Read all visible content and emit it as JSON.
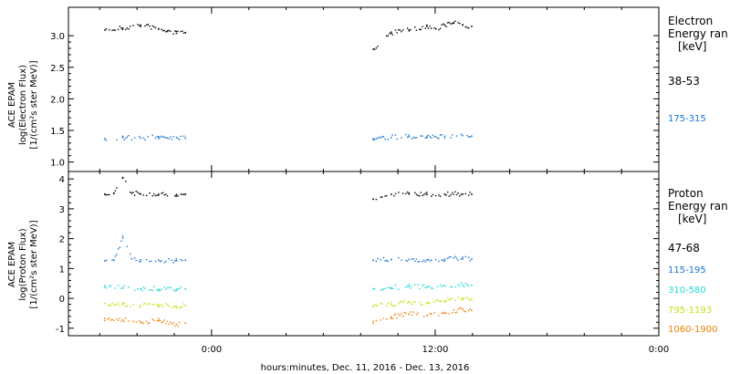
{
  "chart_data": [
    {
      "type": "scatter",
      "panel": "electron",
      "ylabel_lines": [
        "ACE EPAM",
        "log(Electron Flux)",
        "[1/(cm²s ster MeV)]"
      ],
      "ylim": [
        0.85,
        3.45
      ],
      "yticks": [
        "1.0",
        "1.5",
        "2.0",
        "2.5",
        "3.0"
      ],
      "legend_title": [
        "Electron",
        "Energy ran",
        "[keV]"
      ],
      "series": [
        {
          "name": "38-53",
          "color": "#000000",
          "segments": [
            {
              "x": [
                -0.06,
                -0.05,
                -0.04,
                -0.03,
                -0.025,
                -0.02,
                -0.015
              ],
              "values": [
                3.1,
                3.13,
                3.18,
                3.12,
                3.08,
                3.05,
                3.06
              ]
            },
            {
              "x": [
                0.09,
                0.1,
                0.11,
                0.12,
                0.125,
                0.13,
                0.135,
                0.14,
                0.145
              ],
              "values": [
                2.8,
                3.05,
                3.1,
                3.16,
                3.12,
                3.18,
                3.21,
                3.18,
                3.16
              ]
            }
          ]
        },
        {
          "name": "175-315",
          "color": "#1874cd",
          "segments": [
            {
              "x": [
                -0.06,
                -0.05,
                -0.04,
                -0.03,
                -0.02,
                -0.015
              ],
              "values": [
                1.38,
                1.4,
                1.39,
                1.41,
                1.4,
                1.39
              ]
            },
            {
              "x": [
                0.09,
                0.1,
                0.11,
                0.12,
                0.13,
                0.14,
                0.145
              ],
              "values": [
                1.38,
                1.4,
                1.41,
                1.4,
                1.42,
                1.43,
                1.42
              ]
            }
          ]
        }
      ]
    },
    {
      "type": "scatter",
      "panel": "proton",
      "ylabel_lines": [
        "ACE EPAM",
        "log(Proton Flux)",
        "[1/(cm²s ster MeV)]"
      ],
      "ylim": [
        -1.25,
        4.25
      ],
      "yticks": [
        "-1",
        "0",
        "1",
        "2",
        "3",
        "4"
      ],
      "legend_title": [
        "Proton",
        "Energy ran",
        "[keV]"
      ],
      "series": [
        {
          "name": "47-68",
          "color": "#000000",
          "segments": [
            {
              "x": [
                -0.06,
                -0.055,
                -0.05,
                -0.045,
                -0.04,
                -0.03,
                -0.02,
                -0.015
              ],
              "values": [
                3.52,
                3.55,
                4.05,
                3.55,
                3.52,
                3.51,
                3.5,
                3.51
              ]
            },
            {
              "x": [
                0.09,
                0.1,
                0.11,
                0.12,
                0.13,
                0.14,
                0.145
              ],
              "values": [
                3.35,
                3.51,
                3.52,
                3.5,
                3.51,
                3.52,
                3.51
              ]
            }
          ]
        },
        {
          "name": "115-195",
          "color": "#1874cd",
          "segments": [
            {
              "x": [
                -0.06,
                -0.055,
                -0.05,
                -0.045,
                -0.04,
                -0.03,
                -0.02,
                -0.015
              ],
              "values": [
                1.28,
                1.3,
                2.05,
                1.35,
                1.32,
                1.3,
                1.29,
                1.3
              ]
            },
            {
              "x": [
                0.09,
                0.1,
                0.11,
                0.12,
                0.13,
                0.14,
                0.145
              ],
              "values": [
                1.3,
                1.32,
                1.33,
                1.31,
                1.34,
                1.35,
                1.34
              ]
            }
          ]
        },
        {
          "name": "310-580",
          "color": "#20d8d8",
          "segments": [
            {
              "x": [
                -0.06,
                -0.05,
                -0.04,
                -0.03,
                -0.02,
                -0.015
              ],
              "values": [
                0.4,
                0.38,
                0.35,
                0.33,
                0.32,
                0.34
              ]
            },
            {
              "x": [
                0.09,
                0.1,
                0.11,
                0.12,
                0.13,
                0.14,
                0.145
              ],
              "values": [
                0.35,
                0.38,
                0.42,
                0.4,
                0.44,
                0.47,
                0.46
              ]
            }
          ]
        },
        {
          "name": "795-1193",
          "color": "#c8e010",
          "segments": [
            {
              "x": [
                -0.06,
                -0.05,
                -0.04,
                -0.03,
                -0.02,
                -0.015
              ],
              "values": [
                -0.15,
                -0.18,
                -0.22,
                -0.2,
                -0.25,
                -0.22
              ]
            },
            {
              "x": [
                0.09,
                0.1,
                0.11,
                0.12,
                0.13,
                0.14,
                0.145
              ],
              "values": [
                -0.25,
                -0.18,
                -0.1,
                -0.15,
                -0.05,
                0.02,
                0.0
              ]
            }
          ]
        },
        {
          "name": "1060-1900",
          "color": "#ee8000",
          "segments": [
            {
              "x": [
                -0.06,
                -0.05,
                -0.04,
                -0.03,
                -0.02,
                -0.015
              ],
              "values": [
                -0.65,
                -0.7,
                -0.78,
                -0.72,
                -0.85,
                -0.8
              ]
            },
            {
              "x": [
                0.09,
                0.1,
                0.11,
                0.12,
                0.13,
                0.14,
                0.145
              ],
              "values": [
                -0.75,
                -0.6,
                -0.5,
                -0.55,
                -0.45,
                -0.35,
                -0.38
              ]
            }
          ]
        }
      ]
    }
  ],
  "x_axis": {
    "xlim": [
      -0.08,
      0.25
    ],
    "ticks": [
      {
        "x": 0.0,
        "label": "0:00"
      },
      {
        "x": 0.125,
        "label": "12:00"
      },
      {
        "x": 0.25,
        "label": "0:00"
      }
    ],
    "xlabel": "hours:minutes, Dec. 11, 2016 - Dec. 13, 2016"
  }
}
